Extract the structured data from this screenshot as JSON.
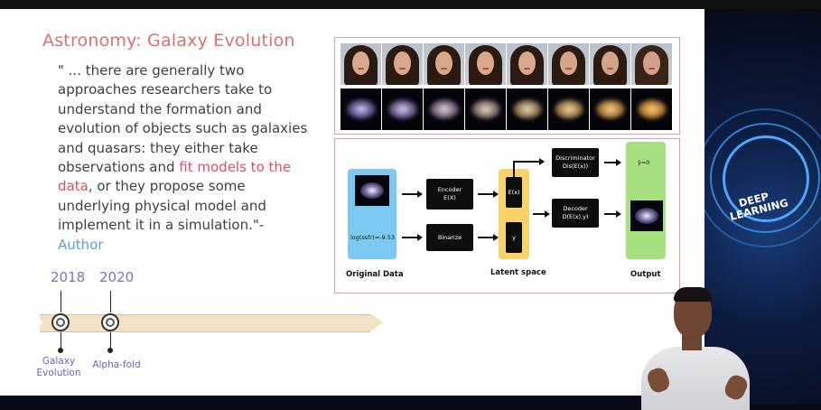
{
  "slide": {
    "title": "Astronomy: Galaxy Evolution",
    "quote": {
      "part1": "\" ... there are generally two approaches researchers take to understand the formation and evolution of objects such as galaxies and quasars: they either take observations and ",
      "highlight": "fit models to the data",
      "part2": ", or they propose some underlying physical model and implement it in a simulation.\"-",
      "author": "Author"
    },
    "timeline": {
      "events": [
        {
          "year": "2018",
          "label_line1": "Galaxy",
          "label_line2": "Evolution"
        },
        {
          "year": "2020",
          "label_line1": "Alpha-fold",
          "label_line2": ""
        }
      ]
    },
    "figure": {
      "diagram": {
        "original_data_caption": "Original Data",
        "sfr_label": "log(ssfr)=-9.53",
        "encoder_line1": "Encoder",
        "encoder_line2": "E(X)",
        "binarize": "Binarize",
        "latent_ex": "E(x)",
        "latent_y": "y",
        "latent_caption": "Latent space",
        "discriminator_line1": "Discriminator",
        "discriminator_line2": "Dis(E(x))",
        "decoder_line1": "Decoder",
        "decoder_line2": "D(E(x),y)",
        "y_hat": "ŷ=0",
        "output_caption": "Output"
      }
    }
  },
  "decoration": {
    "line1": "DEEP",
    "line2": "LEARNING"
  },
  "colors": {
    "title": "#e07070",
    "highlight": "#e05060",
    "author": "#5aa0e0",
    "timeline_text": "#7a6ed0",
    "original_box": "#7cc9f2",
    "latent_box": "#f7d36a",
    "output_box": "#a7e07f"
  }
}
